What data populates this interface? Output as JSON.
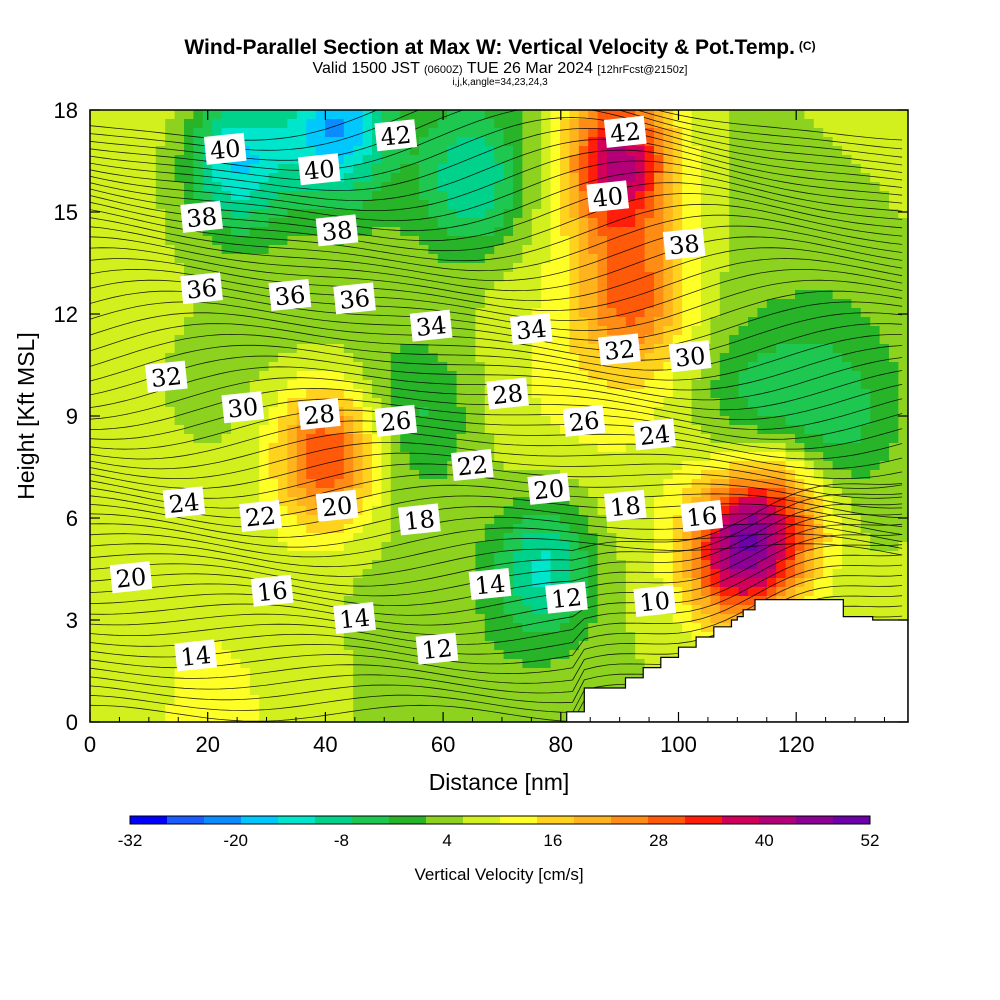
{
  "header": {
    "title": "Wind-Parallel Section at Max W: Vertical Velocity & Pot.Temp.",
    "copyright": "(C)",
    "valid_prefix": "Valid 1500 JST",
    "valid_utc": "(0600Z)",
    "valid_date": "TUE 26 Mar 2024",
    "forecast": "[12hrFcst@2150z]",
    "indices": "i,j,k,angle=34,23,24,3"
  },
  "colors": {
    "fill_scale": [
      "#0000ff",
      "#1a5cff",
      "#0a8cff",
      "#00c8ff",
      "#00e6cc",
      "#00d28c",
      "#1ec850",
      "#28b428",
      "#8cd21e",
      "#d2f01e",
      "#ffff28",
      "#ffd21e",
      "#ffb41e",
      "#ff8c14",
      "#ff5a0a",
      "#ff1e0a",
      "#d2005a",
      "#b40078",
      "#8c0096",
      "#6e00aa"
    ],
    "background": "#ffffff",
    "terrain": "#ffffff"
  },
  "chart_data": {
    "type": "heatmap",
    "xlabel": "Distance [nm]",
    "ylabel": "Height [Kft MSL]",
    "xlim": [
      0,
      139
    ],
    "ylim": [
      0,
      18
    ],
    "x_ticks": [
      0,
      20,
      40,
      60,
      80,
      100,
      120
    ],
    "y_ticks": [
      0,
      3,
      6,
      9,
      12,
      15,
      18
    ],
    "colorbar": {
      "label": "Vertical Velocity [cm/s]",
      "min": -32,
      "max": 52,
      "ticks": [
        -32,
        -20,
        -8,
        4,
        16,
        28,
        40,
        52
      ]
    },
    "w_features": [
      {
        "x": 40,
        "y": 7.8,
        "w": 40,
        "note": "updraft"
      },
      {
        "x": 90,
        "y": 16.5,
        "w": 52,
        "note": "updraft"
      },
      {
        "x": 92,
        "y": 12.5,
        "w": 35,
        "note": "updraft"
      },
      {
        "x": 110,
        "y": 5.0,
        "w": 52,
        "note": "updraft"
      },
      {
        "x": 118,
        "y": 6.0,
        "w": 30,
        "note": "updraft"
      },
      {
        "x": 25,
        "y": 16.5,
        "w": -24,
        "note": "downdraft"
      },
      {
        "x": 42,
        "y": 17.5,
        "w": -28,
        "note": "downdraft"
      },
      {
        "x": 77,
        "y": 4.5,
        "w": -18,
        "note": "downdraft"
      },
      {
        "x": 65,
        "y": 16.0,
        "w": -16,
        "note": "downdraft"
      },
      {
        "x": 56,
        "y": 9.0,
        "w": -6,
        "note": "downdraft"
      },
      {
        "x": 125,
        "y": 9.0,
        "w": -10,
        "note": "downdraft"
      },
      {
        "x": 113,
        "y": 9.5,
        "w": -6,
        "note": "downdraft"
      }
    ],
    "theta_contour_labels": [
      {
        "text": "40",
        "x": 23,
        "y": 16.8
      },
      {
        "text": "42",
        "x": 52,
        "y": 17.2
      },
      {
        "text": "42",
        "x": 91,
        "y": 17.3
      },
      {
        "text": "40",
        "x": 39,
        "y": 16.2
      },
      {
        "text": "40",
        "x": 88,
        "y": 15.4
      },
      {
        "text": "38",
        "x": 19,
        "y": 14.8
      },
      {
        "text": "38",
        "x": 42,
        "y": 14.4
      },
      {
        "text": "38",
        "x": 101,
        "y": 14.0
      },
      {
        "text": "36",
        "x": 19,
        "y": 12.7
      },
      {
        "text": "36",
        "x": 34,
        "y": 12.5
      },
      {
        "text": "36",
        "x": 45,
        "y": 12.4
      },
      {
        "text": "34",
        "x": 58,
        "y": 11.6
      },
      {
        "text": "34",
        "x": 75,
        "y": 11.5
      },
      {
        "text": "32",
        "x": 13,
        "y": 10.1
      },
      {
        "text": "32",
        "x": 90,
        "y": 10.9
      },
      {
        "text": "30",
        "x": 26,
        "y": 9.2
      },
      {
        "text": "30",
        "x": 102,
        "y": 10.7
      },
      {
        "text": "28",
        "x": 39,
        "y": 9.0
      },
      {
        "text": "28",
        "x": 71,
        "y": 9.6
      },
      {
        "text": "26",
        "x": 52,
        "y": 8.8
      },
      {
        "text": "26",
        "x": 84,
        "y": 8.8
      },
      {
        "text": "24",
        "x": 16,
        "y": 6.4
      },
      {
        "text": "24",
        "x": 96,
        "y": 8.4
      },
      {
        "text": "22",
        "x": 29,
        "y": 6.0
      },
      {
        "text": "22",
        "x": 65,
        "y": 7.5
      },
      {
        "text": "20",
        "x": 42,
        "y": 6.3
      },
      {
        "text": "20",
        "x": 78,
        "y": 6.8
      },
      {
        "text": "20",
        "x": 7,
        "y": 4.2
      },
      {
        "text": "18",
        "x": 56,
        "y": 5.9
      },
      {
        "text": "18",
        "x": 91,
        "y": 6.3
      },
      {
        "text": "16",
        "x": 31,
        "y": 3.8
      },
      {
        "text": "16",
        "x": 104,
        "y": 6.0
      },
      {
        "text": "14",
        "x": 45,
        "y": 3.0
      },
      {
        "text": "14",
        "x": 68,
        "y": 4.0
      },
      {
        "text": "14",
        "x": 18,
        "y": 1.9
      },
      {
        "text": "12",
        "x": 59,
        "y": 2.1
      },
      {
        "text": "12",
        "x": 81,
        "y": 3.6
      },
      {
        "text": "10",
        "x": 96,
        "y": 3.5
      }
    ],
    "terrain_profile": {
      "x": [
        80,
        81,
        81,
        84,
        84,
        91,
        91,
        94,
        94,
        97,
        97,
        100,
        100,
        103,
        103,
        106,
        106,
        109,
        109,
        110,
        110,
        111,
        111,
        113,
        113,
        117,
        117,
        128,
        128,
        133,
        133,
        139
      ],
      "y": [
        0,
        0,
        0.3,
        0.3,
        1.0,
        1.0,
        1.3,
        1.3,
        1.6,
        1.6,
        1.9,
        1.9,
        2.2,
        2.2,
        2.5,
        2.5,
        2.8,
        2.8,
        3.0,
        3.0,
        3.1,
        3.1,
        3.3,
        3.3,
        3.6,
        3.6,
        3.6,
        3.6,
        3.1,
        3.1,
        3.0,
        3.0
      ]
    }
  }
}
